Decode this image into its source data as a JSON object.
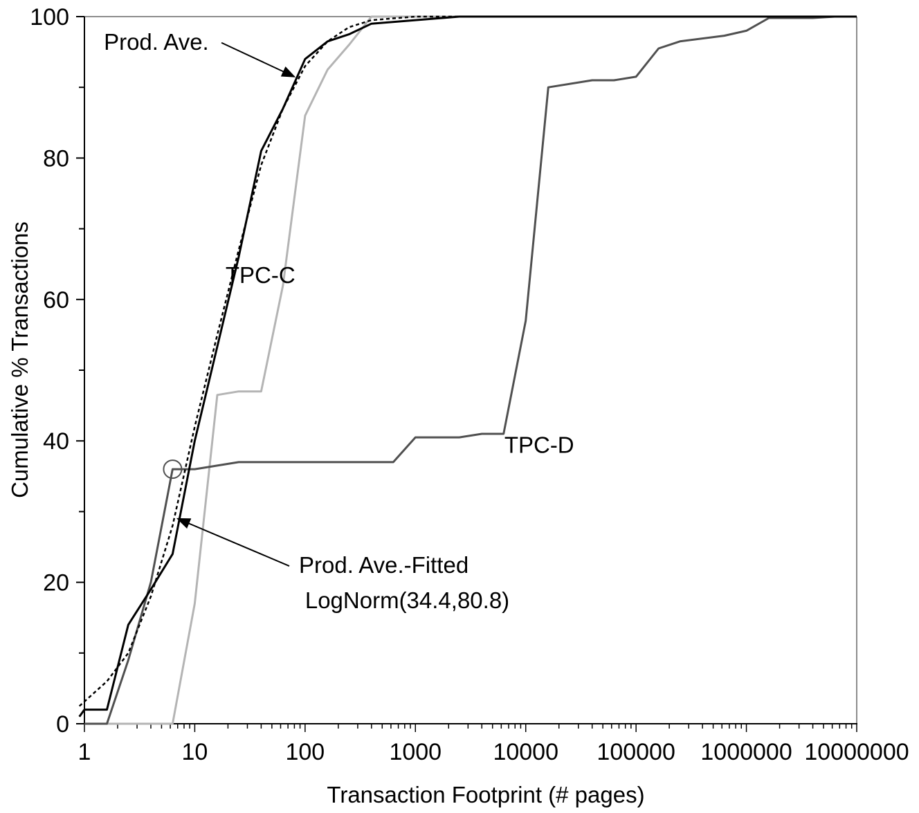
{
  "chart_data": {
    "type": "line",
    "title": "",
    "xlabel": "Transaction Footprint (# pages)",
    "ylabel": "Cumulative % Transactions",
    "xscale": "log",
    "xlim": [
      1,
      10000000
    ],
    "ylim": [
      0,
      100
    ],
    "x_ticks": [
      "1",
      "10",
      "100",
      "1000",
      "10000",
      "100000",
      "1000000",
      "10000000"
    ],
    "y_ticks": [
      "0",
      "20",
      "40",
      "60",
      "80",
      "100"
    ],
    "grid": false,
    "legend": "none",
    "series": [
      {
        "name": "Prod. Ave.",
        "color": "#000000",
        "style": "solid",
        "points": [
          [
            0.9,
            1
          ],
          [
            1,
            2
          ],
          [
            1.6,
            2
          ],
          [
            2.5,
            14
          ],
          [
            4,
            19
          ],
          [
            6.3,
            24
          ],
          [
            10,
            40
          ],
          [
            25,
            66
          ],
          [
            40,
            81
          ],
          [
            63,
            87
          ],
          [
            100,
            94
          ],
          [
            160,
            96.5
          ],
          [
            250,
            97.5
          ],
          [
            400,
            99
          ],
          [
            1000,
            99.5
          ],
          [
            2500,
            100
          ],
          [
            10000000,
            100
          ]
        ]
      },
      {
        "name": "Prod. Ave.-Fitted LogNorm(34.4,80.8)",
        "color": "#000000",
        "style": "dashed",
        "points": [
          [
            0.9,
            2.5
          ],
          [
            1.6,
            6
          ],
          [
            2.5,
            10
          ],
          [
            4,
            18
          ],
          [
            6.3,
            28
          ],
          [
            10,
            42
          ],
          [
            16,
            55
          ],
          [
            25,
            67
          ],
          [
            40,
            79
          ],
          [
            63,
            87
          ],
          [
            100,
            93
          ],
          [
            160,
            96.5
          ],
          [
            250,
            98.5
          ],
          [
            400,
            99.5
          ],
          [
            1000,
            100
          ],
          [
            10000000,
            100
          ]
        ]
      },
      {
        "name": "TPC-C",
        "color": "#b4b4b4",
        "style": "solid",
        "points": [
          [
            1,
            0
          ],
          [
            6.3,
            0
          ],
          [
            10,
            17
          ],
          [
            16,
            46.5
          ],
          [
            25,
            47
          ],
          [
            40,
            47
          ],
          [
            63,
            62
          ],
          [
            100,
            86
          ],
          [
            160,
            92.5
          ],
          [
            250,
            96
          ],
          [
            400,
            100
          ],
          [
            10000000,
            100
          ]
        ]
      },
      {
        "name": "TPC-D",
        "color": "#505050",
        "style": "solid",
        "points": [
          [
            1,
            0
          ],
          [
            1.6,
            0
          ],
          [
            2.5,
            9
          ],
          [
            4,
            20
          ],
          [
            6.3,
            36
          ],
          [
            10,
            36
          ],
          [
            25,
            37
          ],
          [
            630,
            37
          ],
          [
            1000,
            40.5
          ],
          [
            2500,
            40.5
          ],
          [
            4000,
            41
          ],
          [
            6300,
            41
          ],
          [
            10000,
            57
          ],
          [
            16000,
            90
          ],
          [
            40000,
            91
          ],
          [
            63000,
            91
          ],
          [
            100000,
            91.5
          ],
          [
            160000,
            95.5
          ],
          [
            250000,
            96.5
          ],
          [
            630000,
            97.3
          ],
          [
            1000000,
            98
          ],
          [
            1600000,
            99.8
          ],
          [
            4000000,
            99.8
          ],
          [
            6300000,
            100
          ],
          [
            10000000,
            100
          ]
        ]
      }
    ],
    "annotations": [
      {
        "text": "Prod. Ave.",
        "anchor": [
          1.5,
          96.5
        ],
        "arrow_to": [
          80,
          91.5
        ]
      },
      {
        "text": "TPC-C",
        "anchor": [
          19,
          63.5
        ]
      },
      {
        "text": "TPC-D",
        "anchor": [
          6400,
          39.5
        ]
      },
      {
        "text": "Prod. Ave.-Fitted",
        "anchor": [
          88,
          22.5
        ],
        "arrow_to": [
          7,
          29
        ]
      },
      {
        "text": "LogNorm(34.4,80.8)",
        "anchor": [
          100,
          17.5
        ]
      }
    ],
    "marker_circle": {
      "x": 6.3,
      "y": 36
    }
  }
}
